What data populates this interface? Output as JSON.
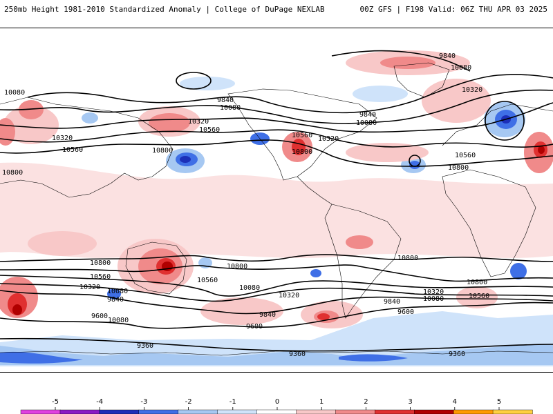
{
  "header": {
    "title_left": "250mb Height 1981-2010 Standardized Anomaly | College of DuPage NEXLAB",
    "title_right": "00Z GFS | F198 Valid: 06Z THU APR 03 2025"
  },
  "map": {
    "projection": "equirectangular (global)",
    "contour_labels": [
      "10080",
      "9840",
      "10080",
      "10320",
      "10560",
      "10800",
      "9840",
      "10080",
      "10560",
      "10800",
      "10320",
      "9840",
      "10080",
      "10320",
      "10560",
      "10800",
      "10800",
      "10560",
      "10320",
      "10080",
      "9840",
      "9600",
      "10800",
      "10560",
      "10320",
      "10080",
      "9840",
      "9600",
      "9360",
      "9360",
      "9840",
      "9600",
      "10320",
      "10080",
      "10560",
      "10800",
      "9360",
      "10080",
      "10800",
      "10560",
      "10320",
      "10800"
    ]
  },
  "colorbar": {
    "ticks": [
      "-5",
      "-4",
      "-3",
      "-2",
      "-1",
      "0",
      "1",
      "2",
      "3",
      "4",
      "5"
    ],
    "colors": [
      "#e040e0",
      "#8a1ac4",
      "#1c2fb8",
      "#3f6fe6",
      "#a6c8f2",
      "#cfe3fa",
      "#ffffff",
      "#f8c8c8",
      "#f08a8a",
      "#e03030",
      "#b00000",
      "#ff9a00",
      "#ffd040"
    ]
  }
}
